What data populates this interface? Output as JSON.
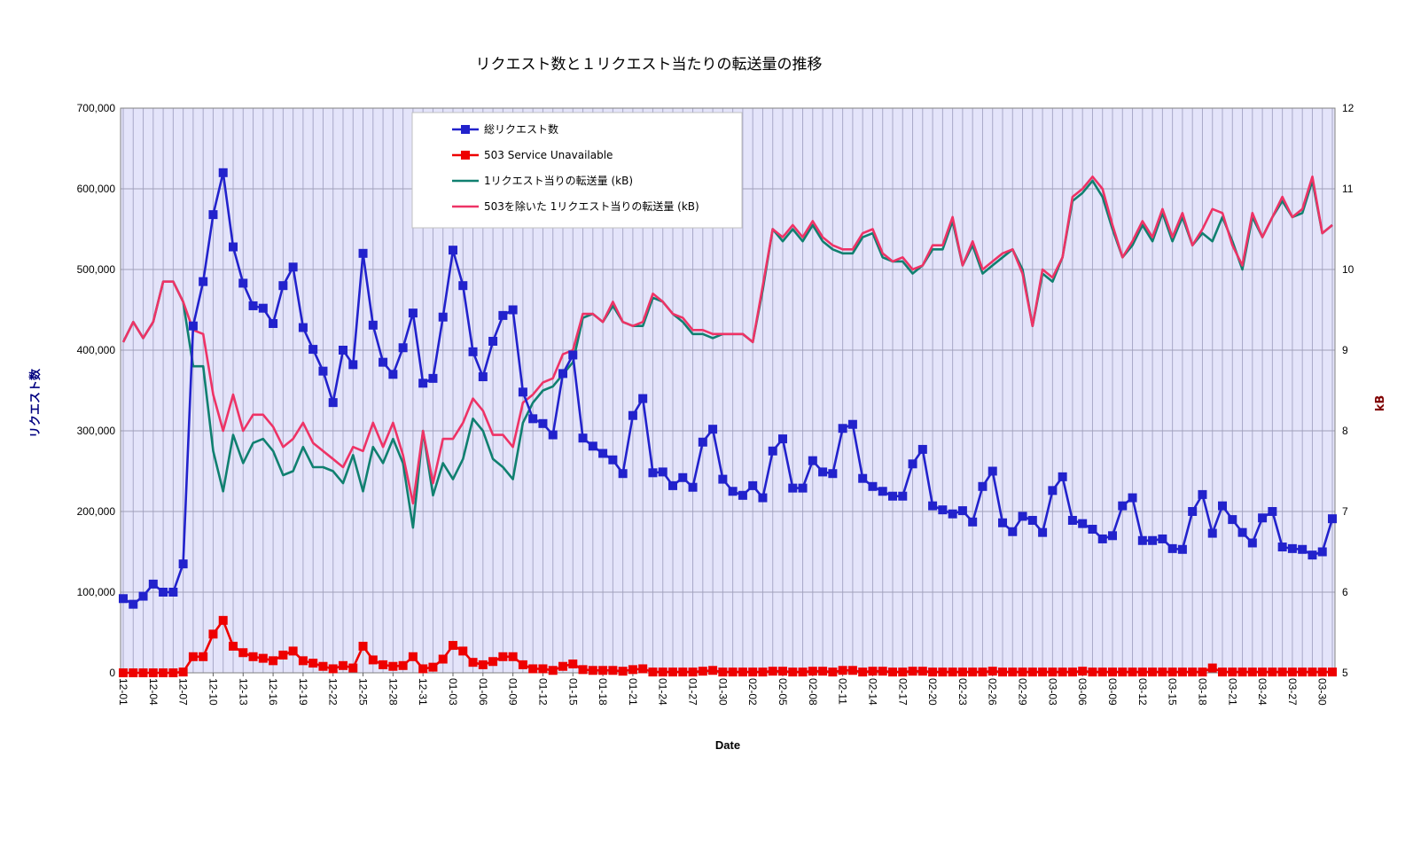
{
  "chart_data": {
    "type": "line",
    "title": "リクエスト数と１リクエスト当たりの転送量の推移",
    "xlabel": "Date",
    "ylabel_left": "リクエスト数",
    "ylabel_right": "kB",
    "ylim_left": [
      0,
      700000
    ],
    "ylim_right": [
      5,
      12
    ],
    "y_ticks_left": [
      "0",
      "100,000",
      "200,000",
      "300,000",
      "400,000",
      "500,000",
      "600,000",
      "700,000"
    ],
    "y_ticks_right": [
      "5",
      "6",
      "7",
      "8",
      "9",
      "10",
      "11",
      "12"
    ],
    "grid": true,
    "legend_position": "top-left (inside plot)",
    "x": [
      "12-01",
      "12-02",
      "12-03",
      "12-04",
      "12-05",
      "12-06",
      "12-07",
      "12-08",
      "12-09",
      "12-10",
      "12-11",
      "12-12",
      "12-13",
      "12-14",
      "12-15",
      "12-16",
      "12-17",
      "12-18",
      "12-19",
      "12-20",
      "12-21",
      "12-22",
      "12-23",
      "12-24",
      "12-25",
      "12-26",
      "12-27",
      "12-28",
      "12-29",
      "12-30",
      "12-31",
      "01-01",
      "01-02",
      "01-03",
      "01-04",
      "01-05",
      "01-06",
      "01-07",
      "01-08",
      "01-09",
      "01-10",
      "01-11",
      "01-12",
      "01-13",
      "01-14",
      "01-15",
      "01-16",
      "01-17",
      "01-18",
      "01-19",
      "01-20",
      "01-21",
      "01-22",
      "01-23",
      "01-24",
      "01-25",
      "01-26",
      "01-27",
      "01-28",
      "01-29",
      "01-30",
      "01-31",
      "02-01",
      "02-02",
      "02-03",
      "02-04",
      "02-05",
      "02-06",
      "02-07",
      "02-08",
      "02-09",
      "02-10",
      "02-11",
      "02-12",
      "02-13",
      "02-14",
      "02-15",
      "02-16",
      "02-17",
      "02-18",
      "02-19",
      "02-20",
      "02-21",
      "02-22",
      "02-23",
      "02-24",
      "02-25",
      "02-26",
      "02-27",
      "02-28",
      "02-29",
      "03-01",
      "03-02",
      "03-03",
      "03-04",
      "03-05",
      "03-06",
      "03-07",
      "03-08",
      "03-09",
      "03-10",
      "03-11",
      "03-12",
      "03-13",
      "03-14",
      "03-15",
      "03-16",
      "03-17",
      "03-18",
      "03-19",
      "03-20",
      "03-21",
      "03-22",
      "03-23",
      "03-24",
      "03-25",
      "03-26",
      "03-27",
      "03-28",
      "03-29",
      "03-30",
      "03-31"
    ],
    "x_tick_labels": [
      "12-01",
      "12-04",
      "12-07",
      "12-10",
      "12-13",
      "12-16",
      "12-19",
      "12-22",
      "12-25",
      "12-28",
      "12-31",
      "01-03",
      "01-06",
      "01-09",
      "01-12",
      "01-15",
      "01-18",
      "01-21",
      "01-24",
      "01-27",
      "01-30",
      "02-02",
      "02-05",
      "02-08",
      "02-11",
      "02-14",
      "02-17",
      "02-20",
      "02-23",
      "02-26",
      "02-29",
      "03-03",
      "03-06",
      "03-09",
      "03-12",
      "03-15",
      "03-18",
      "03-21",
      "03-24",
      "03-27",
      "03-30"
    ],
    "series": [
      {
        "name": "総リクエスト数",
        "axis": "left",
        "color": "#2222cc",
        "marker": "square",
        "values": [
          92000,
          85000,
          95000,
          110000,
          100000,
          100000,
          135000,
          430000,
          485000,
          568000,
          620000,
          528000,
          483000,
          455000,
          452000,
          433000,
          480000,
          503000,
          428000,
          401000,
          374000,
          335000,
          400000,
          382000,
          520000,
          431000,
          385000,
          370000,
          403000,
          446000,
          359000,
          365000,
          441000,
          524000,
          480000,
          398000,
          367000,
          411000,
          443000,
          450000,
          348000,
          315000,
          309000,
          295000,
          371000,
          394000,
          291000,
          281000,
          272000,
          264000,
          247000,
          319000,
          340000,
          248000,
          249000,
          232000,
          242000,
          230000,
          286000,
          302000,
          240000,
          225000,
          220000,
          232000,
          217000,
          275000,
          290000,
          229000,
          229000,
          263000,
          249000,
          247000,
          303000,
          308000,
          241000,
          231000,
          225000,
          219000,
          219000,
          259000,
          277000,
          207000,
          202000,
          197000,
          201000,
          187000,
          231000,
          250000,
          186000,
          175000,
          194000,
          189000,
          174000,
          226000,
          243000,
          189000,
          185000,
          178000,
          166000,
          170000,
          207000,
          217000,
          164000,
          164000,
          166000,
          154000,
          153000,
          200000,
          221000,
          173000,
          207000,
          190000,
          174000,
          161000,
          192000,
          200000,
          156000,
          154000,
          153000,
          146000,
          150000,
          191000
        ]
      },
      {
        "name": "503 Service Unavailable",
        "axis": "left",
        "color": "#ee0000",
        "marker": "square",
        "values": [
          0,
          0,
          0,
          0,
          0,
          0,
          1000,
          20000,
          20000,
          48000,
          65000,
          33000,
          25000,
          20000,
          18000,
          15000,
          22000,
          27000,
          15000,
          12000,
          8000,
          5000,
          9000,
          6000,
          33000,
          16000,
          10000,
          8000,
          9000,
          20000,
          5000,
          7000,
          17000,
          34000,
          27000,
          13000,
          10000,
          14000,
          20000,
          20000,
          10000,
          5000,
          5000,
          3000,
          8000,
          11000,
          4000,
          3000,
          3000,
          3000,
          2000,
          4000,
          5000,
          1000,
          1000,
          1000,
          1000,
          1000,
          2000,
          3000,
          1000,
          1000,
          1000,
          1000,
          1000,
          2000,
          2000,
          1000,
          1000,
          2000,
          2000,
          1000,
          3000,
          3000,
          1000,
          2000,
          2000,
          1000,
          1000,
          2000,
          2000,
          1000,
          1000,
          1000,
          1000,
          1000,
          1000,
          2000,
          1000,
          1000,
          1000,
          1000,
          1000,
          1000,
          1000,
          1000,
          2000,
          1000,
          1000,
          1000,
          1000,
          1000,
          1000,
          1000,
          1000,
          1000,
          1000,
          1000,
          1000,
          6000,
          1000,
          1000,
          1000,
          1000,
          1000,
          1000,
          1000,
          1000,
          1000,
          1000,
          1000,
          1000
        ]
      },
      {
        "name": "1リクエスト当りの転送量 (kB)",
        "axis": "right",
        "color": "#108070",
        "marker": "none",
        "values": [
          9.1,
          9.35,
          9.15,
          9.35,
          9.85,
          9.85,
          9.6,
          8.8,
          8.8,
          7.75,
          7.25,
          7.95,
          7.6,
          7.85,
          7.9,
          7.75,
          7.45,
          7.5,
          7.8,
          7.55,
          7.55,
          7.5,
          7.35,
          7.7,
          7.25,
          7.8,
          7.6,
          7.9,
          7.6,
          6.8,
          8,
          7.2,
          7.6,
          7.4,
          7.65,
          8.15,
          8,
          7.65,
          7.55,
          7.4,
          8.1,
          8.35,
          8.5,
          8.55,
          8.7,
          8.85,
          9.4,
          9.45,
          9.35,
          9.55,
          9.35,
          9.3,
          9.3,
          9.65,
          9.6,
          9.45,
          9.35,
          9.2,
          9.2,
          9.15,
          9.2,
          9.2,
          9.2,
          9.1,
          9.75,
          10.5,
          10.35,
          10.5,
          10.35,
          10.55,
          10.35,
          10.25,
          10.2,
          10.2,
          10.4,
          10.45,
          10.15,
          10.1,
          10.1,
          9.95,
          10.05,
          10.25,
          10.25,
          10.6,
          10.05,
          10.3,
          9.95,
          10.05,
          10.15,
          10.25,
          10.0,
          9.3,
          9.95,
          9.85,
          10.15,
          10.85,
          10.95,
          11.1,
          10.9,
          10.5,
          10.15,
          10.3,
          10.55,
          10.35,
          10.7,
          10.35,
          10.65,
          10.3,
          10.45,
          10.35,
          10.65,
          10.35,
          10.0,
          10.65,
          10.4,
          10.65,
          10.85,
          10.65,
          10.7,
          11.1,
          10.45,
          10.55
        ]
      },
      {
        "name": "503を除いた 1リクエスト当りの転送量 (kB)",
        "axis": "right",
        "color": "#ee3366",
        "marker": "none",
        "values": [
          9.1,
          9.35,
          9.15,
          9.35,
          9.85,
          9.85,
          9.6,
          9.25,
          9.2,
          8.45,
          8.0,
          8.45,
          8.0,
          8.2,
          8.2,
          8.05,
          7.8,
          7.9,
          8.1,
          7.85,
          7.75,
          7.65,
          7.55,
          7.8,
          7.75,
          8.1,
          7.8,
          8.1,
          7.7,
          7.1,
          8.0,
          7.35,
          7.9,
          7.9,
          8.1,
          8.4,
          8.25,
          7.95,
          7.95,
          7.8,
          8.35,
          8.45,
          8.6,
          8.65,
          8.95,
          9.0,
          9.45,
          9.45,
          9.35,
          9.6,
          9.35,
          9.3,
          9.35,
          9.7,
          9.6,
          9.45,
          9.4,
          9.25,
          9.25,
          9.2,
          9.2,
          9.2,
          9.2,
          9.1,
          9.8,
          10.5,
          10.4,
          10.55,
          10.4,
          10.6,
          10.4,
          10.3,
          10.25,
          10.25,
          10.45,
          10.5,
          10.2,
          10.1,
          10.15,
          10.0,
          10.05,
          10.3,
          10.3,
          10.65,
          10.05,
          10.35,
          10.0,
          10.1,
          10.2,
          10.25,
          9.95,
          9.3,
          10.0,
          9.9,
          10.15,
          10.9,
          11.0,
          11.15,
          11.0,
          10.55,
          10.15,
          10.35,
          10.6,
          10.4,
          10.75,
          10.4,
          10.7,
          10.3,
          10.5,
          10.75,
          10.7,
          10.3,
          10.05,
          10.7,
          10.4,
          10.65,
          10.9,
          10.65,
          10.75,
          11.15,
          10.45,
          10.55
        ]
      }
    ]
  }
}
